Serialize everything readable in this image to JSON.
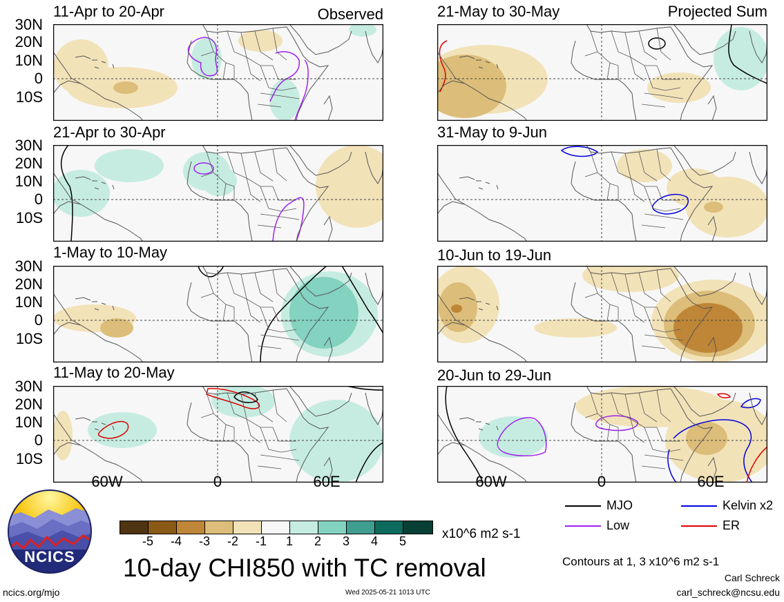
{
  "figure": {
    "main_title": "10-day CHI850 with TC removal",
    "observed_label": "Observed",
    "projected_label": "Projected Sum",
    "units": "x10^6 m2 s-1",
    "contour_note": "Contours at 1, 3 x10^6 m2 s-1",
    "author": "Carl Schreck",
    "email": "carl_schreck@ncsu.edu",
    "url": "ncics.org/mjo",
    "timestamp": "Wed 2025-05-21 1013 UTC",
    "logo_text": "NCICS"
  },
  "axes": {
    "lat_ticks": [
      "30N",
      "20N",
      "10N",
      "0",
      "10S"
    ],
    "lon_ticks": [
      "60W",
      "0",
      "60E"
    ]
  },
  "panels_left": [
    {
      "title": "11-Apr to 20-Apr"
    },
    {
      "title": "21-Apr to 30-Apr"
    },
    {
      "title": "1-May to 10-May"
    },
    {
      "title": "11-May to 20-May"
    }
  ],
  "panels_right": [
    {
      "title": "21-May to 30-May"
    },
    {
      "title": "31-May to 9-Jun"
    },
    {
      "title": "10-Jun to 19-Jun"
    },
    {
      "title": "20-Jun to 29-Jun"
    }
  ],
  "colorbar": {
    "ticks": [
      "-5",
      "-4",
      "-3",
      "-2",
      "-1",
      "1",
      "2",
      "3",
      "4",
      "5"
    ],
    "colors": [
      "#4e3410",
      "#8a5a16",
      "#be8636",
      "#dcbd79",
      "#f2e2b8",
      "#f7f7f7",
      "#c6ece1",
      "#84d2c0",
      "#3f9e90",
      "#0d6b5d",
      "#073f34"
    ]
  },
  "legend": [
    {
      "label": "MJO",
      "color": "#000000"
    },
    {
      "label": "Kelvin x2",
      "color": "#0000dd"
    },
    {
      "label": "Low",
      "color": "#a020f0"
    },
    {
      "label": "ER",
      "color": "#dd0000"
    }
  ]
}
